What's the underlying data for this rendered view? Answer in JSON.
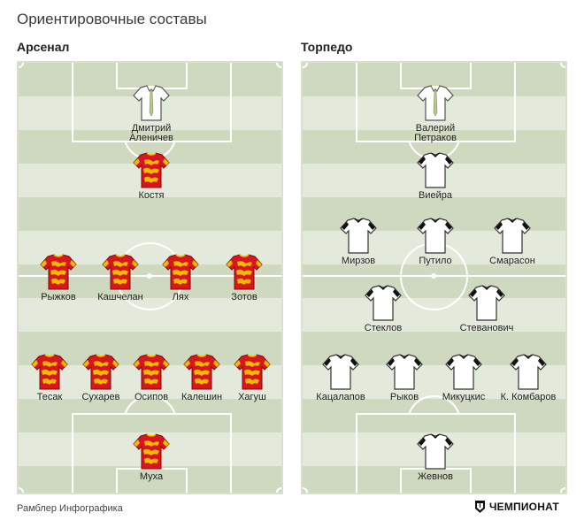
{
  "title": "Ориентировочные составы",
  "brand": {
    "credit": "Рамблер Инфографика",
    "logo_text": "ЧЕМПИОНАТ"
  },
  "colors": {
    "arsenal_kit": "#d9161c",
    "arsenal_trim": "#f5c400",
    "torpedo_kit": "#ffffff",
    "torpedo_trim": "#111111",
    "pitch_dark": "#cfd9c0",
    "pitch_light": "#e4eadb"
  },
  "teams": [
    {
      "name": "Арсенал",
      "players": [
        {
          "name": "Дмитрий\nАленичев",
          "kit": "coach"
        },
        {
          "name": "Костя",
          "kit": "arsenal"
        },
        {
          "name": "Рыжков",
          "kit": "arsenal"
        },
        {
          "name": "Кашчелан",
          "kit": "arsenal"
        },
        {
          "name": "Лях",
          "kit": "arsenal"
        },
        {
          "name": "Зотов",
          "kit": "arsenal"
        },
        {
          "name": "Тесак",
          "kit": "arsenal"
        },
        {
          "name": "Сухарев",
          "kit": "arsenal"
        },
        {
          "name": "Осипов",
          "kit": "arsenal"
        },
        {
          "name": "Калешин",
          "kit": "arsenal"
        },
        {
          "name": "Хагуш",
          "kit": "arsenal"
        },
        {
          "name": "Муха",
          "kit": "arsenal"
        }
      ]
    },
    {
      "name": "Торпедо",
      "players": [
        {
          "name": "Валерий\nПетраков",
          "kit": "coach"
        },
        {
          "name": "Виейра",
          "kit": "torpedo"
        },
        {
          "name": "Мирзов",
          "kit": "torpedo"
        },
        {
          "name": "Путило",
          "kit": "torpedo"
        },
        {
          "name": "Смарасон",
          "kit": "torpedo"
        },
        {
          "name": "Стеклов",
          "kit": "torpedo"
        },
        {
          "name": "Стеванович",
          "kit": "torpedo"
        },
        {
          "name": "Кацалапов",
          "kit": "torpedo"
        },
        {
          "name": "Рыков",
          "kit": "torpedo"
        },
        {
          "name": "Микуцкис",
          "kit": "torpedo"
        },
        {
          "name": "К. Комбаров",
          "kit": "torpedo"
        },
        {
          "name": "Жевнов",
          "kit": "torpedo"
        }
      ]
    }
  ]
}
